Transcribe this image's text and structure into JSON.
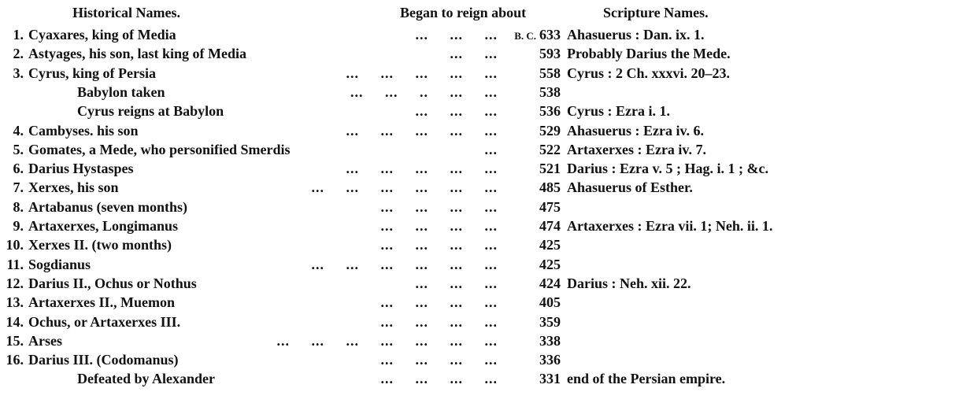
{
  "headers": {
    "historical": "Historical Names.",
    "began": "Began to reign about",
    "scripture": "Scripture Names."
  },
  "rows": [
    {
      "num": "1.",
      "name": "Cyaxares, king of Media",
      "leaders": "...     ...     ...",
      "era": "B. C.",
      "year": "633",
      "scripture": "Ahasuerus : Dan. ix. 1."
    },
    {
      "num": "2.",
      "name": "Astyages, his son, last king of Media",
      "leaders": "...     ...",
      "era": "",
      "year": "593",
      "scripture": "Probably Darius the Mede."
    },
    {
      "num": "3.",
      "name": "Cyrus, king of Persia",
      "leaders": "...     ...     ...     ...     ...",
      "era": "",
      "year": "558",
      "scripture": "Cyrus : 2 Ch. xxxvi. 20–23."
    },
    {
      "num": "",
      "name": "Babylon taken",
      "leaders": "...     ...     ..     ...     ...",
      "era": "",
      "year": "538",
      "scripture": "",
      "sub": true
    },
    {
      "num": "",
      "name": "Cyrus reigns at Babylon",
      "leaders": "...     ...     ...",
      "era": "",
      "year": "536",
      "scripture": "Cyrus : Ezra i. 1.",
      "sub": true
    },
    {
      "num": "4.",
      "name": "Cambyses. his son",
      "leaders": "...     ...     ...     ...     ...",
      "era": "",
      "year": "529",
      "scripture": "Ahasuerus : Ezra iv. 6."
    },
    {
      "num": "5.",
      "name": "Gomates, a Mede, who personified Smerdis",
      "leaders": "...",
      "era": "",
      "year": "522",
      "scripture": "Artaxerxes : Ezra iv. 7."
    },
    {
      "num": "6.",
      "name": "Darius Hystaspes",
      "leaders": "...     ...     ...     ...     ...",
      "era": "",
      "year": "521",
      "scripture": "Darius : Ezra v. 5 ; Hag. i. 1 ; &c."
    },
    {
      "num": "7.",
      "name": "Xerxes, his son",
      "leaders": "...     ...     ...     ...     ...     ...",
      "era": "",
      "year": "485",
      "scripture": "Ahasuerus of Esther."
    },
    {
      "num": "8.",
      "name": "Artabanus (seven months)",
      "leaders": "...     ...     ...     ...",
      "era": "",
      "year": "475",
      "scripture": ""
    },
    {
      "num": "9.",
      "name": "Artaxerxes, Longimanus",
      "leaders": "...     ...     ...     ...",
      "era": "",
      "year": "474",
      "scripture": "Artaxerxes : Ezra vii. 1; Neh. ii. 1."
    },
    {
      "num": "10.",
      "name": "Xerxes II. (two months)",
      "leaders": "...     ...     ...     ...",
      "era": "",
      "year": "425",
      "scripture": ""
    },
    {
      "num": "11.",
      "name": "Sogdianus",
      "leaders": "...     ...     ...     ...     ...     ...",
      "era": "",
      "year": "425",
      "scripture": ""
    },
    {
      "num": "12.",
      "name": "Darius II., Ochus or Nothus",
      "leaders": "...     ...     ...",
      "era": "",
      "year": "424",
      "scripture": "Darius : Neh. xii. 22."
    },
    {
      "num": "13.",
      "name": "Artaxerxes II., Muemon",
      "leaders": "...     ...     ...     ...",
      "era": "",
      "year": "405",
      "scripture": ""
    },
    {
      "num": "14.",
      "name": "Ochus, or Artaxerxes III.",
      "leaders": "...     ...     ...     ...",
      "era": "",
      "year": "359",
      "scripture": ""
    },
    {
      "num": "15.",
      "name": "Arses",
      "leaders": "...     ...     ...     ...     ...     ...     ...",
      "era": "",
      "year": "338",
      "scripture": ""
    },
    {
      "num": "16.",
      "name": "Darius III. (Codomanus)",
      "leaders": "...     ...     ...     ...",
      "era": "",
      "year": "336",
      "scripture": ""
    },
    {
      "num": "",
      "name": "Defeated by Alexander",
      "leaders": "...     ...     ...     ...",
      "era": "",
      "year": "331",
      "scripture": "end of the Persian empire.",
      "defeat": true
    }
  ]
}
